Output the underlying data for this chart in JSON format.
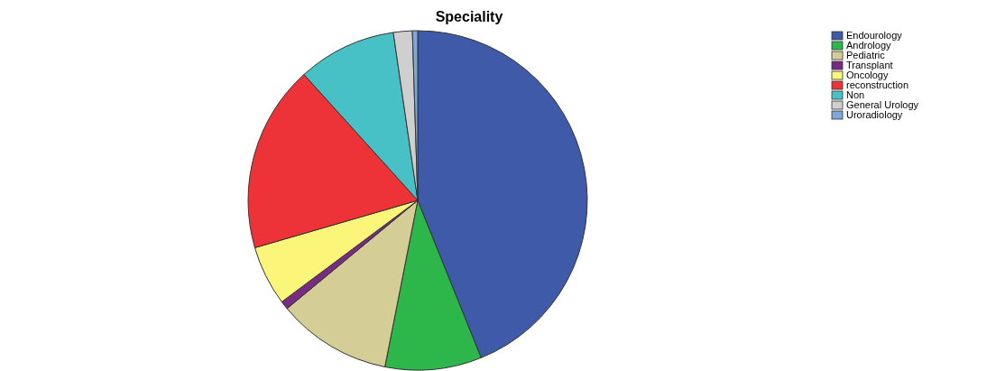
{
  "chart_data": {
    "type": "pie",
    "title": "Speciality",
    "categories": [
      "Endourology",
      "Andrology",
      "Pediatric",
      "Transplant",
      "Oncology",
      "reconstruction",
      "Non",
      "General Urology",
      "Uroradiology"
    ],
    "values": [
      43.9,
      9.2,
      10.9,
      0.8,
      5.7,
      17.8,
      9.4,
      1.8,
      0.5
    ],
    "colors": [
      "#3f5aa8",
      "#2db64a",
      "#d4cd96",
      "#7b2a84",
      "#fbf57a",
      "#ee3338",
      "#47c1c6",
      "#cfcfcf",
      "#7fa7d9"
    ],
    "legend": "top right"
  }
}
